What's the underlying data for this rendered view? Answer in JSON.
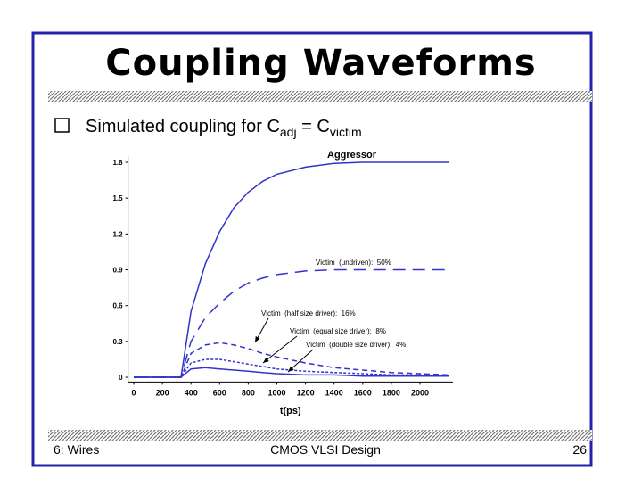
{
  "slide": {
    "title": "Coupling Waveforms",
    "bullet": {
      "text": "Simulated coupling for C",
      "sub1": "adj",
      "mid": " = C",
      "sub2": "victim"
    },
    "footer": {
      "left": "6: Wires",
      "center": "CMOS VLSI Design",
      "right": "26"
    }
  },
  "chart_data": {
    "type": "line",
    "x_label": "t(ps)",
    "x": [
      0,
      200,
      330,
      400,
      500,
      600,
      700,
      800,
      900,
      1000,
      1200,
      1400,
      1600,
      1800,
      2000,
      2200
    ],
    "xlim": [
      -40,
      2230
    ],
    "xticks": [
      0,
      200,
      400,
      600,
      800,
      1000,
      1200,
      1400,
      1600,
      1800,
      2000
    ],
    "ylim": [
      -0.04,
      1.85
    ],
    "yticks": [
      0,
      0.3,
      0.6,
      0.9,
      1.2,
      1.5,
      1.8
    ],
    "series": [
      {
        "name": "Aggressor",
        "color": "#3333cc",
        "dash": "solid",
        "values": [
          0,
          0,
          0,
          0.55,
          0.95,
          1.22,
          1.42,
          1.55,
          1.64,
          1.7,
          1.76,
          1.79,
          1.8,
          1.8,
          1.8,
          1.8
        ]
      },
      {
        "name": "Victim  (undriven):  50%",
        "color": "#3333cc",
        "dash": "dashed",
        "values": [
          0,
          0,
          0,
          0.3,
          0.5,
          0.62,
          0.72,
          0.79,
          0.83,
          0.86,
          0.89,
          0.9,
          0.9,
          0.9,
          0.9,
          0.9
        ]
      },
      {
        "name": "Victim  (half size driver):  16%",
        "color": "#3333cc",
        "dash": "short-dashed",
        "values": [
          0,
          0,
          0,
          0.2,
          0.27,
          0.29,
          0.27,
          0.24,
          0.2,
          0.17,
          0.12,
          0.08,
          0.06,
          0.04,
          0.03,
          0.02
        ]
      },
      {
        "name": "Victim  (equal size driver):  8%",
        "color": "#3333cc",
        "dash": "dotted",
        "values": [
          0,
          0,
          0,
          0.12,
          0.15,
          0.15,
          0.13,
          0.11,
          0.09,
          0.07,
          0.05,
          0.04,
          0.03,
          0.02,
          0.02,
          0.01
        ]
      },
      {
        "name": "Victim  (double size driver):  4%",
        "color": "#3333cc",
        "dash": "solid",
        "values": [
          0,
          0,
          0,
          0.07,
          0.08,
          0.07,
          0.06,
          0.05,
          0.04,
          0.03,
          0.02,
          0.02,
          0.01,
          0.01,
          0.01,
          0.01
        ]
      }
    ]
  }
}
